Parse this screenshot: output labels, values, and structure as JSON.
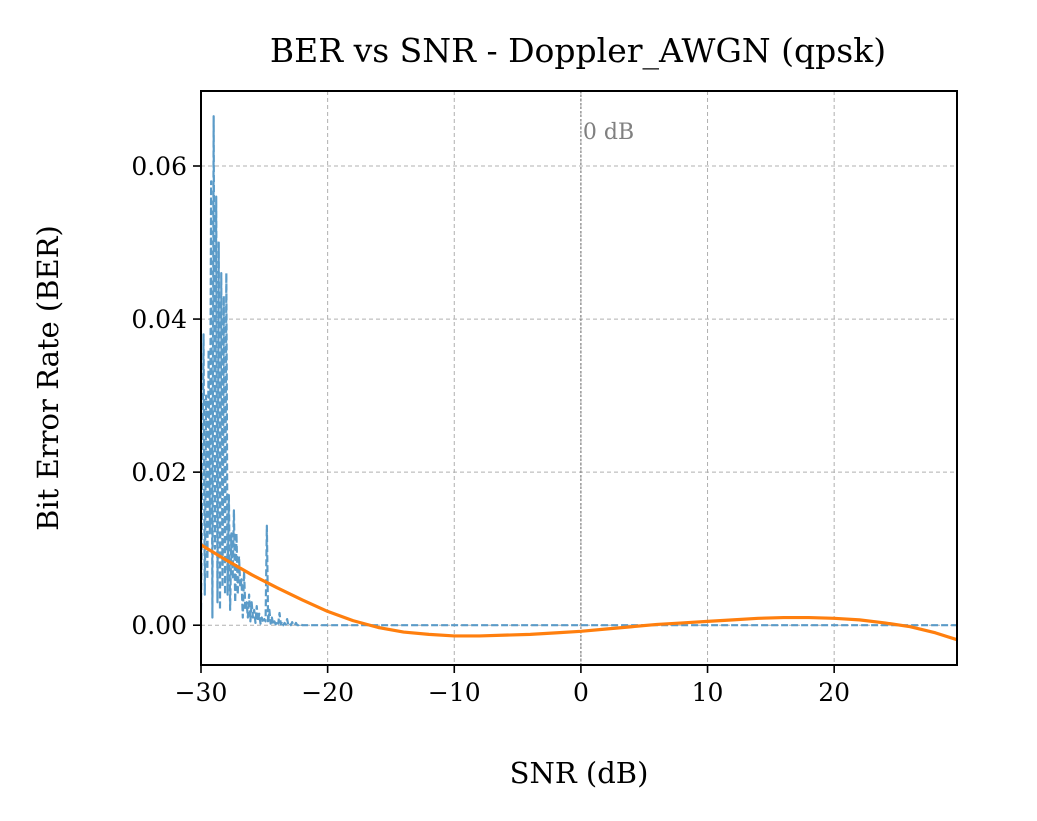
{
  "chart_data": {
    "type": "line",
    "title": "BER vs SNR - Doppler_AWGN (qpsk)",
    "xlabel": "SNR (dB)",
    "ylabel": "Bit Error Rate (BER)",
    "xlim": [
      -30,
      29.7
    ],
    "ylim": [
      -0.0052,
      0.0698
    ],
    "xticks": [
      -30,
      -20,
      -10,
      0,
      10,
      20
    ],
    "xtick_labels": [
      "−30",
      "−20",
      "−10",
      "0",
      "10",
      "20"
    ],
    "yticks": [
      0.0,
      0.02,
      0.04,
      0.06
    ],
    "ytick_labels": [
      "0.00",
      "0.02",
      "0.04",
      "0.06"
    ],
    "grid": true,
    "vline": {
      "x": 0,
      "label": "0 dB",
      "color": "#808080"
    },
    "series": [
      {
        "style": "dashed",
        "color": "#5b9bc8",
        "x": [
          -30,
          -29.8,
          -29.7,
          -29.6,
          -29.5,
          -29.4,
          -29.3,
          -29.2,
          -29.1,
          -29.0,
          -28.9,
          -28.8,
          -28.7,
          -28.6,
          -28.5,
          -28.4,
          -28.3,
          -28.2,
          -28.1,
          -28.0,
          -27.9,
          -27.8,
          -27.7,
          -27.6,
          -27.5,
          -27.4,
          -27.3,
          -27.2,
          -27.1,
          -27.0,
          -26.9,
          -26.8,
          -26.7,
          -26.6,
          -26.5,
          -26.4,
          -26.3,
          -26.2,
          -26.1,
          -26.0,
          -25.9,
          -25.8,
          -25.7,
          -25.6,
          -25.5,
          -25.4,
          -25.3,
          -25.2,
          -25.1,
          -25.0,
          -24.9,
          -24.8,
          -24.7,
          -24.6,
          -24.5,
          -24.4,
          -24.3,
          -24.2,
          -24.1,
          -24.0,
          -23.9,
          -23.8,
          -23.7,
          -23.6,
          -23.5,
          -23.4,
          -23.3,
          -23.2,
          -23.1,
          -23.0,
          -22.9,
          -22.8,
          -22.7,
          -22.6,
          -22.5,
          -22.4,
          -22.3,
          -22.2,
          -22.0,
          -21.5,
          -21.0,
          -20.0,
          -15.0,
          -10.0,
          -5.0,
          0.0,
          5.0,
          10.0,
          15.0,
          20.0,
          25.0,
          29.7
        ],
        "y": [
          0.002,
          0.038,
          0.004,
          0.03,
          0.006,
          0.036,
          0.012,
          0.058,
          0.001,
          0.0665,
          0.01,
          0.056,
          0.003,
          0.05,
          0.002,
          0.046,
          0.005,
          0.043,
          0.004,
          0.046,
          0.004,
          0.017,
          0.002,
          0.012,
          0.006,
          0.015,
          0.003,
          0.012,
          0.004,
          0.009,
          0.005,
          0.006,
          0.001,
          0.007,
          0.002,
          0.003,
          0.001,
          0.004,
          0.0005,
          0.003,
          0.001,
          0.002,
          0.0003,
          0.0025,
          0.0005,
          0.0015,
          0.0002,
          0.001,
          0.0003,
          0.0008,
          0.0005,
          0.013,
          0.0003,
          0.002,
          0.0002,
          0.001,
          0.0001,
          0.0005,
          0.0001,
          0.0006,
          0.0002,
          0.0016,
          0.0001,
          0.0005,
          0.0,
          0.0003,
          0.0001,
          0.0008,
          0.0,
          0.0002,
          0.0,
          0.0004,
          0.0,
          0.0,
          0.0003,
          0.0,
          0.0,
          0.0002,
          0.0,
          0.0,
          0.0,
          0.0,
          0.0,
          0.0,
          0.0,
          0.0,
          0.0,
          0.0,
          0.0,
          0.0,
          0.0,
          0.0
        ]
      },
      {
        "style": "solid",
        "color": "#ff7f0e",
        "x": [
          -30,
          -28,
          -26,
          -24,
          -22,
          -20,
          -18,
          -16,
          -14,
          -12,
          -10,
          -8,
          -6,
          -4,
          -2,
          0,
          2,
          4,
          6,
          8,
          10,
          12,
          14,
          16,
          18,
          20,
          22,
          24,
          26,
          28,
          29.7
        ],
        "y": [
          0.0105,
          0.0085,
          0.0066,
          0.0049,
          0.0033,
          0.0018,
          0.0006,
          -0.0003,
          -0.0009,
          -0.0012,
          -0.0014,
          -0.0014,
          -0.0013,
          -0.0012,
          -0.001,
          -0.0008,
          -0.0005,
          -0.0002,
          0.0001,
          0.0003,
          0.0005,
          0.0007,
          0.0009,
          0.001,
          0.001,
          0.0009,
          0.0007,
          0.0003,
          -0.0002,
          -0.001,
          -0.0019
        ]
      }
    ]
  }
}
